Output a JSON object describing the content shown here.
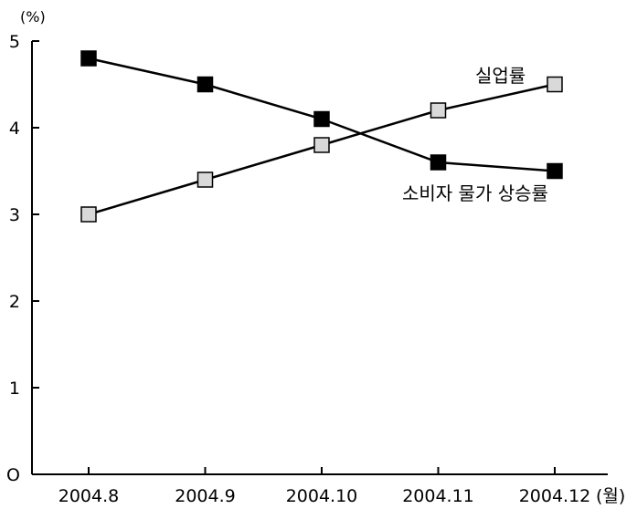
{
  "chart_data": {
    "type": "line",
    "categories": [
      "2004.8",
      "2004.9",
      "2004.10",
      "2004.11",
      "2004.12"
    ],
    "x_unit": "(월)",
    "y_unit": "(%)",
    "ylim": [
      0,
      5
    ],
    "yticks": [
      "O",
      "1",
      "2",
      "3",
      "4",
      "5"
    ],
    "grid": false,
    "series": [
      {
        "name": "실업률",
        "values": [
          3.0,
          3.4,
          3.8,
          4.2,
          4.5
        ],
        "marker": "square-open",
        "marker_fill": "#d9d9d9"
      },
      {
        "name": "소비자 물가 상승률",
        "values": [
          4.8,
          4.5,
          4.1,
          3.6,
          3.5
        ],
        "marker": "square-filled",
        "marker_fill": "#000000"
      }
    ]
  }
}
